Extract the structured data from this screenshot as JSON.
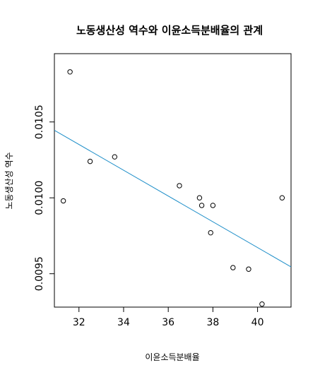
{
  "chart_data": {
    "type": "scatter",
    "title": "노동생산성 역수와 이윤소득분배율의 관계",
    "xlabel": "이윤소득분배율",
    "ylabel": "노동생산성 역수",
    "xlim": [
      30.9,
      41.5
    ],
    "ylim": [
      0.00928,
      0.01095
    ],
    "x_ticks": [
      32,
      34,
      36,
      38,
      40
    ],
    "y_ticks": [
      0.0095,
      0.01,
      0.0105
    ],
    "x_tick_labels": [
      "32",
      "34",
      "36",
      "38",
      "40"
    ],
    "y_tick_labels": [
      "0.0095",
      "0.0100",
      "0.0105"
    ],
    "points": [
      {
        "x": 31.3,
        "y": 0.00998
      },
      {
        "x": 31.6,
        "y": 0.01083
      },
      {
        "x": 32.5,
        "y": 0.01024
      },
      {
        "x": 33.6,
        "y": 0.01027
      },
      {
        "x": 36.5,
        "y": 0.01008
      },
      {
        "x": 37.4,
        "y": 0.01
      },
      {
        "x": 37.5,
        "y": 0.00995
      },
      {
        "x": 37.9,
        "y": 0.00977
      },
      {
        "x": 38.0,
        "y": 0.00995
      },
      {
        "x": 38.9,
        "y": 0.00954
      },
      {
        "x": 39.6,
        "y": 0.00953
      },
      {
        "x": 40.2,
        "y": 0.0093
      },
      {
        "x": 41.1,
        "y": 0.01
      }
    ],
    "trendline": {
      "x": [
        30.9,
        41.5
      ],
      "y": [
        0.010445,
        0.009545
      ],
      "color": "#1f8fc9"
    },
    "point_color": "#000000",
    "grid": false,
    "legend": "none"
  }
}
